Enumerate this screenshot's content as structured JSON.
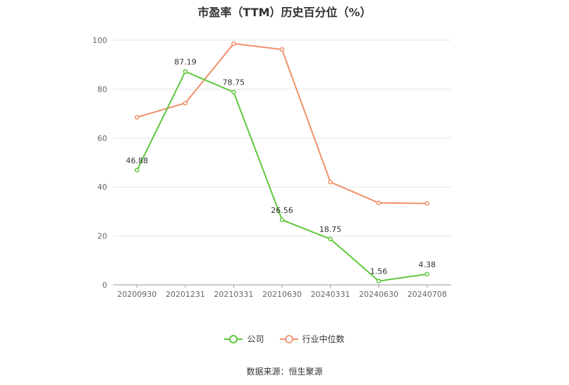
{
  "chart_data": {
    "type": "line",
    "title": "市盈率（TTM）历史百分位（%）",
    "categories": [
      "20200930",
      "20201231",
      "20210331",
      "20210630",
      "20240331",
      "20240630",
      "20240708"
    ],
    "ylim": [
      0,
      100
    ],
    "yticks": [
      0,
      20,
      40,
      60,
      80,
      100
    ],
    "grid": true,
    "legend_position": "bottom",
    "series": [
      {
        "name": "公司",
        "color": "#5ec83c",
        "values": [
          46.88,
          87.19,
          78.75,
          26.56,
          18.75,
          1.56,
          4.38
        ],
        "labels": [
          "46.88",
          "87.19",
          "78.75",
          "26.56",
          "18.75",
          "1.56",
          "4.38"
        ]
      },
      {
        "name": "行业中位数",
        "color": "#f0906a",
        "values": [
          68.5,
          74.3,
          98.6,
          96.2,
          42.0,
          33.5,
          33.3
        ]
      }
    ]
  },
  "source": "数据来源：恒生聚源"
}
